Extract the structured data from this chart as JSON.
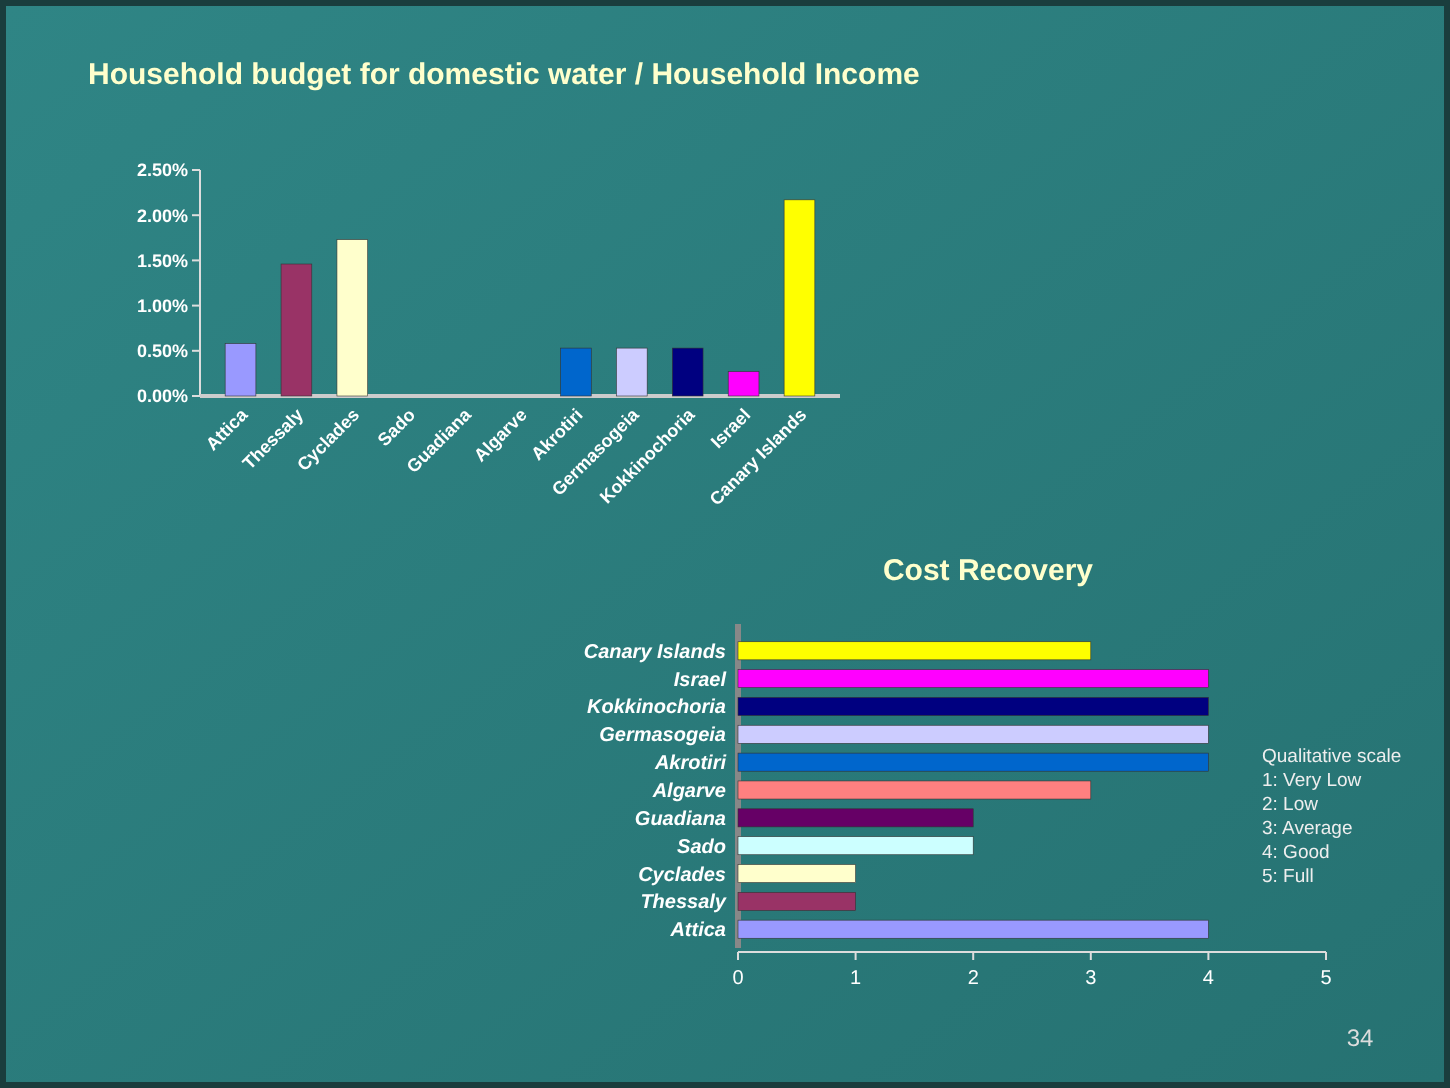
{
  "chart_data": [
    {
      "type": "bar",
      "title": "Household budget for domestic water / Household Income",
      "categories": [
        "Attica",
        "Thessaly",
        "Cyclades",
        "Sado",
        "Guadiana",
        "Algarve",
        "Akrotiri",
        "Germasogeia",
        "Kokkinochoria",
        "Israel",
        "Canary Islands"
      ],
      "values": [
        0.58,
        1.46,
        1.73,
        0,
        0,
        0,
        0.53,
        0.53,
        0.53,
        0.27,
        2.17
      ],
      "colors": [
        "#9999ff",
        "#993366",
        "#ffffcc",
        "#ccffff",
        "#660066",
        "#ff8080",
        "#0066cc",
        "#ccccff",
        "#000080",
        "#ff00ff",
        "#ffff00"
      ],
      "ylim": [
        0,
        2.5
      ],
      "yticks": [
        {
          "value": 0,
          "label": "0.00%"
        },
        {
          "value": 0.5,
          "label": "0.50%"
        },
        {
          "value": 1,
          "label": "1.00%"
        },
        {
          "value": 1.5,
          "label": "1.50%"
        },
        {
          "value": 2,
          "label": "2.00%"
        },
        {
          "value": 2.5,
          "label": "2.50%"
        }
      ],
      "grid": false,
      "annotations": [
        "34"
      ]
    },
    {
      "type": "bar",
      "orientation": "horizontal",
      "title": "Cost Recovery",
      "categories": [
        "Canary Islands",
        "Israel",
        "Kokkinochoria",
        "Germasogeia",
        "Akrotiri",
        "Algarve",
        "Guadiana",
        "Sado",
        "Cyclades",
        "Thessaly",
        "Attica"
      ],
      "values": [
        3,
        4,
        4,
        4,
        4,
        3,
        2,
        2,
        1,
        1,
        4
      ],
      "colors": [
        "#ffff00",
        "#ff00ff",
        "#000080",
        "#ccccff",
        "#0066cc",
        "#ff8080",
        "#660066",
        "#ccffff",
        "#ffffcc",
        "#993366",
        "#9999ff"
      ],
      "xlim": [
        0,
        5
      ],
      "xticks": [
        0,
        1,
        2,
        3,
        4,
        5
      ],
      "grid": false,
      "annotations": [
        "Qualitative scale",
        "1: Very Low",
        "2: Low",
        "3: Average",
        "4: Good",
        "5: Full"
      ]
    }
  ]
}
